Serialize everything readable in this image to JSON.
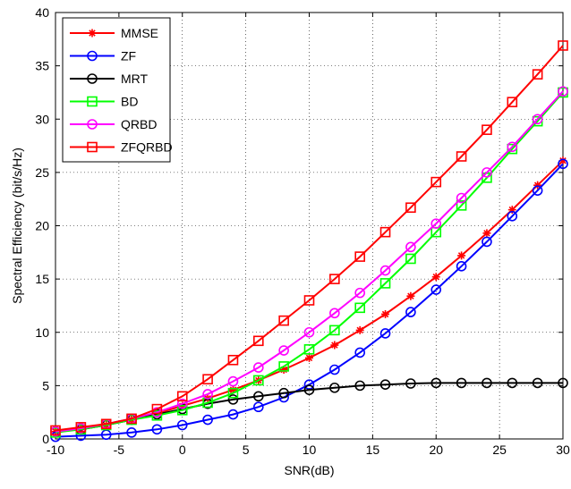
{
  "chart_data": {
    "type": "line",
    "title": "",
    "xlabel": "SNR(dB)",
    "ylabel": "Spectral Efficiency (bit/s/Hz)",
    "xlim": [
      -10,
      30
    ],
    "ylim": [
      0,
      40
    ],
    "xticks": [
      -10,
      -5,
      0,
      5,
      10,
      15,
      20,
      25,
      30
    ],
    "yticks": [
      0,
      5,
      10,
      15,
      20,
      25,
      30,
      35,
      40
    ],
    "xtick_labels": [
      "-10",
      "-5",
      "0",
      "5",
      "10",
      "15",
      "20",
      "25",
      "30"
    ],
    "ytick_labels": [
      "0",
      "5",
      "10",
      "15",
      "20",
      "25",
      "30",
      "35",
      "40"
    ],
    "grid": true,
    "grid_style": "dotted",
    "legend_position": "top-left",
    "x": [
      -10,
      -8,
      -6,
      -4,
      -2,
      0,
      2,
      4,
      6,
      8,
      10,
      12,
      14,
      16,
      18,
      20,
      22,
      24,
      26,
      28,
      30
    ],
    "series": [
      {
        "name": "MMSE",
        "color": "#ff0000",
        "marker": "star",
        "values": [
          0.7,
          0.9,
          1.3,
          1.8,
          2.4,
          3.1,
          3.8,
          4.6,
          5.5,
          6.5,
          7.6,
          8.8,
          10.2,
          11.7,
          13.4,
          15.2,
          17.2,
          19.3,
          21.5,
          23.8,
          26.1
        ]
      },
      {
        "name": "ZF",
        "color": "#0000ff",
        "marker": "circle",
        "values": [
          0.2,
          0.3,
          0.4,
          0.6,
          0.9,
          1.3,
          1.8,
          2.3,
          3.0,
          3.9,
          5.1,
          6.5,
          8.1,
          9.9,
          11.9,
          14.0,
          16.2,
          18.5,
          20.9,
          23.3,
          25.8
        ]
      },
      {
        "name": "MRT",
        "color": "#000000",
        "marker": "circle",
        "values": [
          0.7,
          0.9,
          1.3,
          1.8,
          2.3,
          2.8,
          3.3,
          3.7,
          4.0,
          4.3,
          4.6,
          4.8,
          5.0,
          5.1,
          5.2,
          5.25,
          5.25,
          5.25,
          5.25,
          5.25,
          5.25
        ]
      },
      {
        "name": "BD",
        "color": "#00ff00",
        "marker": "square",
        "values": [
          0.6,
          0.9,
          1.3,
          1.8,
          2.2,
          2.7,
          3.4,
          4.3,
          5.5,
          6.8,
          8.4,
          10.2,
          12.3,
          14.6,
          16.9,
          19.4,
          21.9,
          24.5,
          27.2,
          29.8,
          32.5
        ]
      },
      {
        "name": "QRBD",
        "color": "#ff00ff",
        "marker": "circle",
        "values": [
          0.7,
          1.0,
          1.4,
          1.9,
          2.5,
          3.3,
          4.2,
          5.4,
          6.7,
          8.3,
          10.0,
          11.8,
          13.7,
          15.8,
          18.0,
          20.2,
          22.6,
          25.0,
          27.4,
          30.0,
          32.6
        ]
      },
      {
        "name": "ZFQRBD",
        "color": "#ff0000",
        "marker": "square",
        "values": [
          0.8,
          1.1,
          1.4,
          1.9,
          2.8,
          4.0,
          5.6,
          7.4,
          9.2,
          11.1,
          13.0,
          15.0,
          17.1,
          19.4,
          21.7,
          24.1,
          26.5,
          29.0,
          31.6,
          34.2,
          36.9
        ]
      }
    ]
  }
}
